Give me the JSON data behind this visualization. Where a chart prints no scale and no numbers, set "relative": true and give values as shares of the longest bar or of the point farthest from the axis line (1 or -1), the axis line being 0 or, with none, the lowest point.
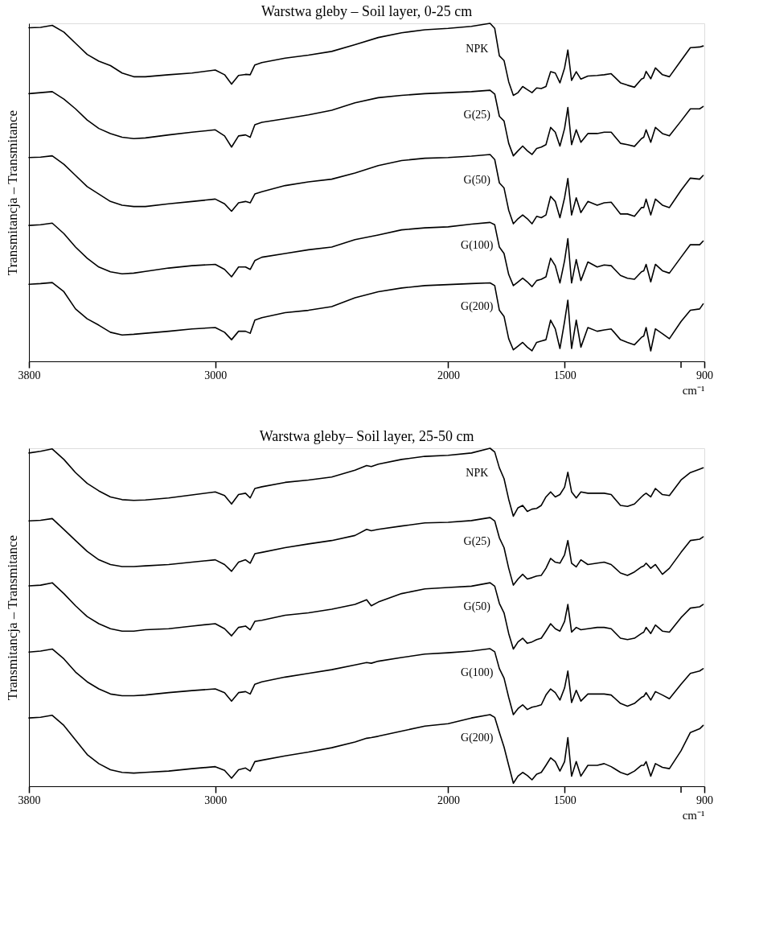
{
  "chart_data": [
    {
      "type": "line",
      "title": "Warstwa gleby – Soil layer, 0-25 cm",
      "xlabel": "cm⁻¹",
      "ylabel": "Transmitancja  –  Transmitance",
      "relative": true,
      "legend": false,
      "line_style": "solid",
      "xlim": [
        3800,
        900
      ],
      "xticks": [
        3800,
        3000,
        2000,
        1500,
        {
          "value": 1000,
          "label": null
        },
        900
      ],
      "x": [
        3800,
        3750,
        3700,
        3650,
        3600,
        3550,
        3500,
        3450,
        3400,
        3350,
        3300,
        3200,
        3100,
        3000,
        2960,
        2930,
        2900,
        2870,
        2850,
        2830,
        2800,
        2700,
        2600,
        2500,
        2400,
        2300,
        2200,
        2100,
        2000,
        1900,
        1820,
        1800,
        1780,
        1760,
        1740,
        1720,
        1700,
        1680,
        1660,
        1640,
        1620,
        1600,
        1580,
        1560,
        1540,
        1520,
        1500,
        1486,
        1470,
        1450,
        1430,
        1400,
        1360,
        1330,
        1300,
        1260,
        1230,
        1200,
        1170,
        1160,
        1150,
        1130,
        1110,
        1080,
        1050,
        1000,
        960,
        920,
        905
      ],
      "series": [
        {
          "name": "NPK",
          "color": "#000000",
          "values": [
            0.987,
            0.988,
            0.994,
            0.974,
            0.941,
            0.908,
            0.888,
            0.875,
            0.853,
            0.842,
            0.842,
            0.848,
            0.853,
            0.862,
            0.848,
            0.82,
            0.846,
            0.849,
            0.848,
            0.877,
            0.884,
            0.897,
            0.906,
            0.917,
            0.937,
            0.958,
            0.972,
            0.981,
            0.985,
            0.991,
            1.0,
            0.985,
            0.904,
            0.89,
            0.827,
            0.787,
            0.795,
            0.813,
            0.804,
            0.795,
            0.809,
            0.807,
            0.813,
            0.857,
            0.853,
            0.824,
            0.868,
            0.921,
            0.831,
            0.857,
            0.835,
            0.844,
            0.846,
            0.848,
            0.851,
            0.824,
            0.817,
            0.811,
            0.835,
            0.838,
            0.858,
            0.836,
            0.868,
            0.848,
            0.842,
            0.89,
            0.928,
            0.93,
            0.933
          ]
        },
        {
          "name": "G(25)",
          "color": "#000000",
          "values": [
            0.792,
            0.795,
            0.798,
            0.776,
            0.747,
            0.714,
            0.689,
            0.674,
            0.663,
            0.659,
            0.661,
            0.67,
            0.678,
            0.685,
            0.667,
            0.634,
            0.667,
            0.67,
            0.663,
            0.7,
            0.707,
            0.718,
            0.729,
            0.743,
            0.765,
            0.78,
            0.787,
            0.792,
            0.795,
            0.798,
            0.802,
            0.791,
            0.725,
            0.711,
            0.645,
            0.608,
            0.623,
            0.637,
            0.623,
            0.612,
            0.63,
            0.634,
            0.641,
            0.692,
            0.678,
            0.637,
            0.689,
            0.751,
            0.641,
            0.685,
            0.648,
            0.674,
            0.674,
            0.678,
            0.678,
            0.645,
            0.641,
            0.636,
            0.659,
            0.663,
            0.685,
            0.648,
            0.692,
            0.674,
            0.667,
            0.711,
            0.747,
            0.747,
            0.754
          ]
        },
        {
          "name": "G(50)",
          "color": "#000000",
          "values": [
            0.603,
            0.604,
            0.608,
            0.583,
            0.55,
            0.517,
            0.495,
            0.473,
            0.462,
            0.458,
            0.458,
            0.466,
            0.473,
            0.48,
            0.466,
            0.444,
            0.469,
            0.473,
            0.469,
            0.495,
            0.502,
            0.52,
            0.531,
            0.539,
            0.557,
            0.579,
            0.594,
            0.601,
            0.603,
            0.607,
            0.612,
            0.597,
            0.528,
            0.513,
            0.447,
            0.407,
            0.422,
            0.433,
            0.422,
            0.407,
            0.429,
            0.425,
            0.433,
            0.488,
            0.473,
            0.425,
            0.484,
            0.541,
            0.433,
            0.484,
            0.44,
            0.473,
            0.462,
            0.469,
            0.471,
            0.436,
            0.436,
            0.429,
            0.455,
            0.455,
            0.48,
            0.433,
            0.48,
            0.462,
            0.455,
            0.506,
            0.542,
            0.539,
            0.55
          ]
        },
        {
          "name": "G(100)",
          "color": "#000000",
          "values": [
            0.402,
            0.404,
            0.409,
            0.378,
            0.338,
            0.305,
            0.279,
            0.265,
            0.259,
            0.261,
            0.266,
            0.276,
            0.283,
            0.287,
            0.272,
            0.25,
            0.279,
            0.279,
            0.272,
            0.298,
            0.308,
            0.319,
            0.33,
            0.338,
            0.36,
            0.374,
            0.389,
            0.395,
            0.398,
            0.406,
            0.411,
            0.404,
            0.338,
            0.319,
            0.257,
            0.224,
            0.235,
            0.246,
            0.235,
            0.221,
            0.239,
            0.243,
            0.25,
            0.305,
            0.283,
            0.232,
            0.298,
            0.363,
            0.232,
            0.301,
            0.239,
            0.294,
            0.279,
            0.285,
            0.283,
            0.254,
            0.246,
            0.243,
            0.265,
            0.268,
            0.287,
            0.235,
            0.287,
            0.268,
            0.261,
            0.308,
            0.345,
            0.345,
            0.356
          ]
        },
        {
          "name": "G(200)",
          "color": "#000000",
          "values": [
            0.228,
            0.23,
            0.233,
            0.206,
            0.155,
            0.126,
            0.107,
            0.086,
            0.078,
            0.08,
            0.083,
            0.089,
            0.096,
            0.1,
            0.086,
            0.064,
            0.089,
            0.089,
            0.083,
            0.122,
            0.129,
            0.144,
            0.151,
            0.162,
            0.188,
            0.206,
            0.217,
            0.224,
            0.227,
            0.23,
            0.232,
            0.224,
            0.151,
            0.133,
            0.067,
            0.034,
            0.045,
            0.056,
            0.042,
            0.031,
            0.056,
            0.06,
            0.064,
            0.122,
            0.096,
            0.038,
            0.118,
            0.181,
            0.038,
            0.122,
            0.042,
            0.1,
            0.089,
            0.093,
            0.096,
            0.064,
            0.056,
            0.049,
            0.071,
            0.075,
            0.1,
            0.031,
            0.096,
            0.082,
            0.067,
            0.118,
            0.151,
            0.155,
            0.17
          ]
        }
      ]
    },
    {
      "type": "line",
      "title": "Warstwa gleby– Soil layer, 25-50 cm",
      "xlabel": "cm⁻¹",
      "ylabel": "Transmitancja  –  Transmitance",
      "relative": true,
      "legend": false,
      "line_style": "solid",
      "xlim": [
        3800,
        900
      ],
      "xticks": [
        3800,
        3000,
        2000,
        1500,
        {
          "value": 1000,
          "label": null
        },
        900
      ],
      "x": [
        3800,
        3750,
        3700,
        3650,
        3600,
        3550,
        3500,
        3450,
        3400,
        3350,
        3300,
        3200,
        3100,
        3000,
        2960,
        2930,
        2900,
        2870,
        2850,
        2830,
        2800,
        2700,
        2600,
        2500,
        2400,
        2350,
        2330,
        2300,
        2200,
        2100,
        2000,
        1900,
        1820,
        1800,
        1780,
        1760,
        1740,
        1720,
        1700,
        1680,
        1660,
        1640,
        1620,
        1600,
        1580,
        1560,
        1540,
        1520,
        1500,
        1486,
        1470,
        1450,
        1430,
        1400,
        1360,
        1330,
        1300,
        1260,
        1230,
        1200,
        1170,
        1160,
        1150,
        1130,
        1110,
        1080,
        1050,
        1000,
        960,
        920,
        905
      ],
      "series": [
        {
          "name": "NPK",
          "color": "#000000",
          "values": [
            0.986,
            0.991,
            0.998,
            0.967,
            0.928,
            0.896,
            0.874,
            0.856,
            0.848,
            0.846,
            0.847,
            0.853,
            0.862,
            0.871,
            0.86,
            0.835,
            0.863,
            0.867,
            0.853,
            0.881,
            0.886,
            0.899,
            0.906,
            0.915,
            0.935,
            0.949,
            0.946,
            0.953,
            0.967,
            0.976,
            0.979,
            0.986,
            1.0,
            0.989,
            0.942,
            0.91,
            0.849,
            0.799,
            0.824,
            0.831,
            0.813,
            0.82,
            0.822,
            0.831,
            0.856,
            0.871,
            0.856,
            0.863,
            0.885,
            0.929,
            0.871,
            0.853,
            0.871,
            0.867,
            0.867,
            0.867,
            0.863,
            0.831,
            0.828,
            0.835,
            0.856,
            0.862,
            0.867,
            0.856,
            0.881,
            0.863,
            0.86,
            0.906,
            0.928,
            0.938,
            0.942
          ]
        },
        {
          "name": "G(25)",
          "color": "#000000",
          "values": [
            0.785,
            0.787,
            0.792,
            0.76,
            0.727,
            0.695,
            0.67,
            0.656,
            0.65,
            0.65,
            0.652,
            0.656,
            0.663,
            0.67,
            0.656,
            0.636,
            0.663,
            0.67,
            0.66,
            0.688,
            0.692,
            0.706,
            0.717,
            0.727,
            0.742,
            0.76,
            0.756,
            0.76,
            0.77,
            0.779,
            0.781,
            0.786,
            0.795,
            0.785,
            0.735,
            0.706,
            0.645,
            0.595,
            0.613,
            0.627,
            0.613,
            0.617,
            0.622,
            0.624,
            0.645,
            0.674,
            0.663,
            0.66,
            0.685,
            0.727,
            0.66,
            0.649,
            0.67,
            0.656,
            0.66,
            0.663,
            0.656,
            0.631,
            0.624,
            0.634,
            0.649,
            0.652,
            0.66,
            0.645,
            0.656,
            0.627,
            0.645,
            0.692,
            0.727,
            0.731,
            0.738
          ]
        },
        {
          "name": "G(50)",
          "color": "#000000",
          "values": [
            0.593,
            0.595,
            0.602,
            0.57,
            0.534,
            0.502,
            0.481,
            0.466,
            0.459,
            0.459,
            0.463,
            0.466,
            0.474,
            0.481,
            0.466,
            0.445,
            0.47,
            0.474,
            0.463,
            0.488,
            0.491,
            0.506,
            0.513,
            0.524,
            0.538,
            0.552,
            0.534,
            0.545,
            0.57,
            0.584,
            0.588,
            0.592,
            0.602,
            0.592,
            0.541,
            0.513,
            0.452,
            0.406,
            0.427,
            0.438,
            0.423,
            0.427,
            0.434,
            0.438,
            0.459,
            0.481,
            0.466,
            0.459,
            0.488,
            0.538,
            0.456,
            0.47,
            0.463,
            0.466,
            0.47,
            0.47,
            0.466,
            0.438,
            0.434,
            0.438,
            0.452,
            0.456,
            0.47,
            0.452,
            0.477,
            0.459,
            0.456,
            0.499,
            0.527,
            0.531,
            0.538
          ]
        },
        {
          "name": "G(100)",
          "color": "#000000",
          "values": [
            0.397,
            0.4,
            0.406,
            0.377,
            0.338,
            0.309,
            0.288,
            0.273,
            0.268,
            0.268,
            0.27,
            0.277,
            0.283,
            0.288,
            0.277,
            0.252,
            0.277,
            0.28,
            0.273,
            0.302,
            0.309,
            0.323,
            0.334,
            0.345,
            0.359,
            0.366,
            0.364,
            0.37,
            0.381,
            0.391,
            0.395,
            0.4,
            0.407,
            0.398,
            0.348,
            0.32,
            0.263,
            0.212,
            0.23,
            0.241,
            0.227,
            0.234,
            0.237,
            0.241,
            0.27,
            0.288,
            0.277,
            0.255,
            0.291,
            0.341,
            0.248,
            0.284,
            0.252,
            0.273,
            0.273,
            0.273,
            0.27,
            0.245,
            0.237,
            0.245,
            0.263,
            0.266,
            0.277,
            0.255,
            0.28,
            0.27,
            0.259,
            0.302,
            0.334,
            0.341,
            0.348
          ]
        },
        {
          "name": "G(200)",
          "color": "#000000",
          "values": [
            0.202,
            0.204,
            0.21,
            0.18,
            0.137,
            0.094,
            0.067,
            0.049,
            0.041,
            0.039,
            0.041,
            0.045,
            0.052,
            0.058,
            0.047,
            0.024,
            0.049,
            0.054,
            0.045,
            0.073,
            0.077,
            0.09,
            0.101,
            0.114,
            0.131,
            0.142,
            0.144,
            0.148,
            0.163,
            0.178,
            0.185,
            0.202,
            0.212,
            0.204,
            0.159,
            0.116,
            0.062,
            0.009,
            0.03,
            0.041,
            0.032,
            0.019,
            0.036,
            0.041,
            0.062,
            0.084,
            0.073,
            0.045,
            0.073,
            0.144,
            0.03,
            0.073,
            0.03,
            0.062,
            0.062,
            0.067,
            0.058,
            0.041,
            0.034,
            0.045,
            0.062,
            0.062,
            0.073,
            0.03,
            0.067,
            0.056,
            0.052,
            0.105,
            0.159,
            0.17,
            0.18
          ]
        }
      ]
    }
  ]
}
